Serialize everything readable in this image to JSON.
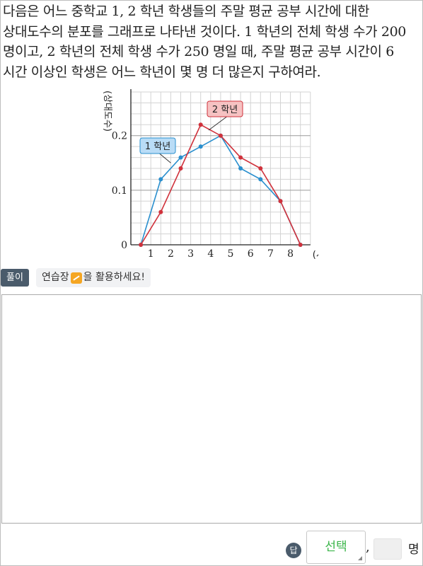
{
  "question": {
    "text": "다음은 어느 중학교 1, 2 학년 학생들의 주말 평균 공부 시간에 대한 상대도수의 분포를 그래프로 나타낸 것이다. 1 학년의 전체 학생 수가 200 명이고, 2 학년의 전체 학생 수가 250 명일 때, 주말 평균 공부 시간이 6 시간 이상인 학생은 어느 학년이 몇 명 더 많은지 구하여라."
  },
  "chart_data": {
    "type": "line",
    "ylabel": "(상대도수)",
    "xlabel": "(시간)",
    "x_ticks": [
      "1",
      "2",
      "3",
      "4",
      "5",
      "6",
      "7",
      "8"
    ],
    "y_ticks": [
      "0",
      "0.1",
      "0.2"
    ],
    "xlim": [
      0,
      9
    ],
    "ylim": [
      0,
      0.28
    ],
    "series": [
      {
        "name": "1 학년",
        "color": "#2a8fce",
        "x": [
          0.5,
          1.5,
          2.5,
          3.5,
          4.5,
          5.5,
          6.5,
          7.5,
          8.5
        ],
        "y": [
          0,
          0.12,
          0.16,
          0.18,
          0.2,
          0.14,
          0.12,
          0.08,
          0
        ]
      },
      {
        "name": "2 학년",
        "color": "#d0323c",
        "x": [
          0.5,
          1.5,
          2.5,
          3.5,
          4.5,
          5.5,
          6.5,
          7.5,
          8.5
        ],
        "y": [
          0,
          0.06,
          0.14,
          0.22,
          0.2,
          0.16,
          0.14,
          0.08,
          0
        ]
      }
    ],
    "grid": true,
    "legend": "labels on lines"
  },
  "toolbar": {
    "solution_label": "풀이",
    "practice_before": "연습장",
    "practice_after": "을 활용하세요!"
  },
  "answer": {
    "badge": "답",
    "select_placeholder": "선택",
    "comma": ",",
    "unit": "명"
  }
}
